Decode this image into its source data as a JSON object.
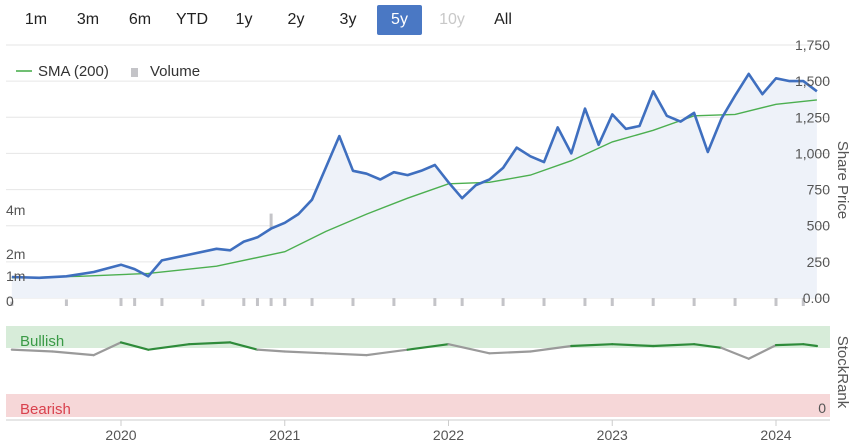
{
  "range_buttons": [
    {
      "label": "1m",
      "state": "normal"
    },
    {
      "label": "3m",
      "state": "normal"
    },
    {
      "label": "6m",
      "state": "normal"
    },
    {
      "label": "YTD",
      "state": "normal"
    },
    {
      "label": "1y",
      "state": "normal"
    },
    {
      "label": "2y",
      "state": "normal"
    },
    {
      "label": "3y",
      "state": "normal"
    },
    {
      "label": "5y",
      "state": "active"
    },
    {
      "label": "10y",
      "state": "disabled"
    },
    {
      "label": "All",
      "state": "normal"
    }
  ],
  "colors": {
    "price": "#3f6fbf",
    "sma": "#4caf50",
    "volume": "#c4c4c8",
    "bullish_band": "#d7ecd9",
    "bearish_band": "#f6d7d8",
    "rank_bull": "#2e8b3a",
    "rank_neutral": "#9a9a9a",
    "bullish_text": "#3a9a46",
    "bearish_text": "#d9414d"
  },
  "chart_data": [
    {
      "type": "line",
      "legend": [
        "SMA (200)",
        "Volume"
      ],
      "y_title": "Share Price",
      "y_ticks": [
        "1,750",
        "1,500",
        "1,250",
        "1,000",
        "750",
        "500",
        "250",
        "0.00"
      ],
      "y_range": [
        0,
        1750
      ],
      "volume_ticks": [
        "4m",
        "2m",
        "1m",
        "0"
      ],
      "x_ticks": [
        "2020",
        "2021",
        "2022",
        "2023",
        "2024"
      ],
      "x_range": [
        "2019-05",
        "2024-04"
      ],
      "series": [
        {
          "name": "Share Price",
          "x": [
            "2019-05",
            "2019-07",
            "2019-09",
            "2019-11",
            "2020-01",
            "2020-02",
            "2020-03",
            "2020-04",
            "2020-06",
            "2020-08",
            "2020-09",
            "2020-10",
            "2020-11",
            "2020-12",
            "2021-01",
            "2021-02",
            "2021-03",
            "2021-04",
            "2021-05",
            "2021-06",
            "2021-07",
            "2021-08",
            "2021-09",
            "2021-10",
            "2021-11",
            "2021-12",
            "2022-01",
            "2022-02",
            "2022-03",
            "2022-04",
            "2022-05",
            "2022-06",
            "2022-07",
            "2022-08",
            "2022-09",
            "2022-10",
            "2022-11",
            "2022-12",
            "2023-01",
            "2023-02",
            "2023-03",
            "2023-04",
            "2023-05",
            "2023-06",
            "2023-07",
            "2023-08",
            "2023-09",
            "2023-10",
            "2023-11",
            "2023-12",
            "2024-01",
            "2024-02",
            "2024-03",
            "2024-04"
          ],
          "values": [
            145,
            140,
            150,
            180,
            230,
            200,
            150,
            260,
            300,
            340,
            330,
            390,
            420,
            480,
            520,
            580,
            680,
            900,
            1120,
            880,
            860,
            820,
            870,
            850,
            880,
            920,
            800,
            690,
            780,
            820,
            900,
            1040,
            980,
            940,
            1180,
            1000,
            1310,
            1060,
            1270,
            1170,
            1190,
            1430,
            1260,
            1220,
            1280,
            1010,
            1240,
            1400,
            1550,
            1410,
            1520,
            1500,
            1500,
            1430
          ]
        },
        {
          "name": "SMA (200)",
          "x": [
            "2019-05",
            "2019-10",
            "2020-03",
            "2020-08",
            "2021-01",
            "2021-04",
            "2021-07",
            "2021-10",
            "2022-01",
            "2022-04",
            "2022-07",
            "2022-10",
            "2023-01",
            "2023-04",
            "2023-07",
            "2023-10",
            "2024-01",
            "2024-04"
          ],
          "values": [
            140,
            150,
            170,
            220,
            320,
            460,
            580,
            690,
            790,
            800,
            850,
            950,
            1080,
            1160,
            1260,
            1270,
            1340,
            1370
          ]
        },
        {
          "name": "Volume",
          "x": [
            "2019-05",
            "2019-09",
            "2020-01",
            "2020-02",
            "2020-04",
            "2020-07",
            "2020-10",
            "2020-11",
            "2020-12",
            "2021-01",
            "2021-03",
            "2021-06",
            "2021-09",
            "2021-12",
            "2022-02",
            "2022-05",
            "2022-08",
            "2022-11",
            "2023-01",
            "2023-04",
            "2023-07",
            "2023-10",
            "2024-01",
            "2024-03"
          ],
          "values": [
            0.2,
            0.3,
            0.6,
            0.9,
            0.5,
            0.3,
            0.8,
            1.3,
            4.2,
            1.5,
            0.7,
            0.8,
            0.6,
            0.5,
            0.4,
            0.7,
            0.6,
            1.1,
            0.9,
            0.6,
            0.5,
            0.8,
            0.7,
            1.4
          ]
        }
      ]
    },
    {
      "type": "line",
      "y_title": "StockRank",
      "band_labels": [
        "Bullish",
        "Bearish"
      ],
      "y_ticks": [
        "0"
      ],
      "y_range": [
        0,
        100
      ],
      "series": [
        {
          "name": "StockRank",
          "x": [
            "2019-05",
            "2019-08",
            "2019-11",
            "2020-01",
            "2020-03",
            "2020-06",
            "2020-09",
            "2020-11",
            "2021-01",
            "2021-04",
            "2021-07",
            "2021-10",
            "2022-01",
            "2022-04",
            "2022-07",
            "2022-10",
            "2023-01",
            "2023-04",
            "2023-07",
            "2023-09",
            "2023-11",
            "2024-01",
            "2024-03",
            "2024-04"
          ],
          "values": [
            74,
            72,
            68,
            82,
            74,
            80,
            82,
            74,
            72,
            70,
            68,
            74,
            80,
            70,
            72,
            78,
            80,
            78,
            80,
            76,
            64,
            79,
            80,
            78
          ]
        }
      ]
    }
  ]
}
